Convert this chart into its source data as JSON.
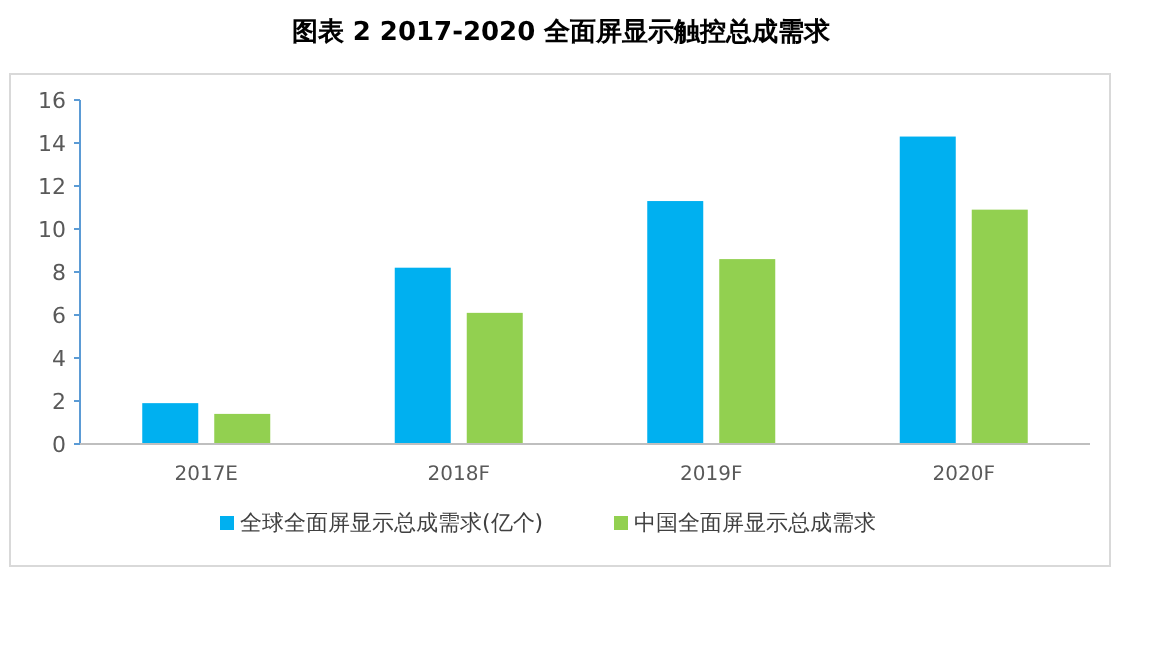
{
  "chart_data": {
    "type": "bar",
    "title": "图表 2    2017-2020 全面屏显示触控总成需求",
    "categories": [
      "2017E",
      "2018F",
      "2019F",
      "2020F"
    ],
    "series": [
      {
        "name": "全球全面屏显示总成需求(亿个)",
        "color": "#00b0f0",
        "values": [
          1.9,
          8.2,
          11.3,
          14.3
        ]
      },
      {
        "name": "中国全面屏显示总成需求",
        "color": "#92d050",
        "values": [
          1.4,
          6.1,
          8.6,
          10.9
        ]
      }
    ],
    "ylim": [
      0,
      16
    ],
    "yticks": [
      0,
      2,
      4,
      6,
      8,
      10,
      12,
      14,
      16
    ],
    "grid": false,
    "legend": "bottom"
  }
}
